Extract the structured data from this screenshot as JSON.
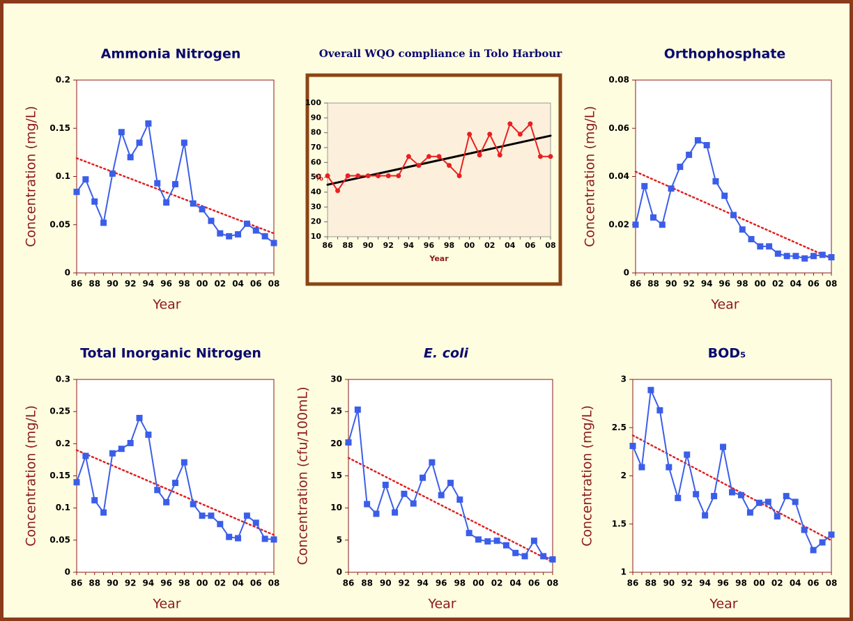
{
  "chart_data": [
    {
      "type": "line",
      "title": "Ammonia Nitrogen",
      "x_label": "Year",
      "y_label": "Concentration (mg/L)",
      "categories": [
        "86",
        null,
        "88",
        null,
        "90",
        null,
        "92",
        null,
        "94",
        null,
        "96",
        null,
        "98",
        null,
        "00",
        null,
        "02",
        null,
        "04",
        null,
        "06",
        null,
        "08"
      ],
      "series": [
        {
          "color": "#3b5ee8",
          "marker": "square",
          "values": [
            0.084,
            0.097,
            0.074,
            0.052,
            0.103,
            0.146,
            0.12,
            0.135,
            0.155,
            0.093,
            0.073,
            0.092,
            0.135,
            0.072,
            0.066,
            0.054,
            0.041,
            0.038,
            0.04,
            0.051,
            0.044,
            0.038,
            0.031
          ]
        }
      ],
      "trend_line": {
        "color": "#e02020",
        "style": "dotted",
        "start": 0.119,
        "end": 0.041
      },
      "ylim": [
        0,
        0.2
      ],
      "yticks": [
        0,
        0.05,
        0.1,
        0.15,
        0.2
      ],
      "plot_background": "#ffffff"
    },
    {
      "type": "line",
      "title": "Overall WQO compliance in Tolo Harbour",
      "x_label": "Year",
      "y_label": "%",
      "categories": [
        "86",
        null,
        "88",
        null,
        "90",
        null,
        "92",
        null,
        "94",
        null,
        "96",
        null,
        "98",
        null,
        "00",
        null,
        "02",
        null,
        "04",
        null,
        "06",
        null,
        "08"
      ],
      "series": [
        {
          "color": "#e82020",
          "marker": "circle",
          "values": [
            51,
            41,
            51,
            51,
            51,
            51,
            51,
            51,
            64,
            58,
            64,
            64,
            58,
            51,
            79,
            65,
            79,
            65,
            86,
            79,
            86,
            64,
            64
          ]
        }
      ],
      "trend_line": {
        "color": "#000000",
        "style": "solid",
        "start": 45,
        "end": 78
      },
      "ylim": [
        10,
        100
      ],
      "yticks": [
        10,
        20,
        30,
        40,
        50,
        60,
        70,
        80,
        90,
        100
      ],
      "plot_background": "#fcefdc"
    },
    {
      "type": "line",
      "title": "Orthophosphate",
      "x_label": "Year",
      "y_label": "Concentration (mg/L)",
      "categories": [
        "86",
        null,
        "88",
        null,
        "90",
        null,
        "92",
        null,
        "94",
        null,
        "96",
        null,
        "98",
        null,
        "00",
        null,
        "02",
        null,
        "04",
        null,
        "06",
        null,
        "08"
      ],
      "series": [
        {
          "color": "#3b5ee8",
          "marker": "square",
          "values": [
            0.02,
            0.036,
            0.023,
            0.02,
            0.035,
            0.044,
            0.049,
            0.055,
            0.053,
            0.038,
            0.032,
            0.024,
            0.018,
            0.014,
            0.011,
            0.011,
            0.008,
            0.007,
            0.007,
            0.006,
            0.007,
            0.0075,
            0.0065
          ]
        }
      ],
      "trend_line": {
        "color": "#e02020",
        "style": "dotted",
        "start": 0.042,
        "end": 0.006
      },
      "ylim": [
        0,
        0.08
      ],
      "yticks": [
        0,
        0.02,
        0.04,
        0.06,
        0.08
      ],
      "plot_background": "#ffffff"
    },
    {
      "type": "line",
      "title": "Total Inorganic Nitrogen",
      "x_label": "Year",
      "y_label": "Concentration (mg/L)",
      "categories": [
        "86",
        null,
        "88",
        null,
        "90",
        null,
        "92",
        null,
        "94",
        null,
        "96",
        null,
        "98",
        null,
        "00",
        null,
        "02",
        null,
        "04",
        null,
        "06",
        null,
        "08"
      ],
      "series": [
        {
          "color": "#3b5ee8",
          "marker": "square",
          "values": [
            0.14,
            0.181,
            0.112,
            0.093,
            0.185,
            0.192,
            0.201,
            0.24,
            0.214,
            0.128,
            0.109,
            0.139,
            0.171,
            0.106,
            0.088,
            0.088,
            0.075,
            0.055,
            0.053,
            0.088,
            0.077,
            0.052,
            0.051
          ]
        }
      ],
      "trend_line": {
        "color": "#e02020",
        "style": "dotted",
        "start": 0.19,
        "end": 0.058
      },
      "ylim": [
        0,
        0.3
      ],
      "yticks": [
        0,
        0.05,
        0.1,
        0.15,
        0.2,
        0.25,
        0.3
      ],
      "plot_background": "#ffffff"
    },
    {
      "type": "line",
      "title": "E. coli",
      "title_italic": true,
      "x_label": "Year",
      "y_label": "Concentration (cfu/100mL)",
      "categories": [
        "86",
        null,
        "88",
        null,
        "90",
        null,
        "92",
        null,
        "94",
        null,
        "96",
        null,
        "98",
        null,
        "00",
        null,
        "02",
        null,
        "04",
        null,
        "06",
        null,
        "08"
      ],
      "series": [
        {
          "color": "#3b5ee8",
          "marker": "square",
          "values": [
            20.2,
            25.3,
            10.6,
            9.1,
            13.6,
            9.3,
            12.2,
            10.7,
            14.7,
            17.1,
            12.0,
            13.9,
            11.3,
            6.1,
            5.1,
            4.8,
            4.9,
            4.2,
            3.0,
            2.5,
            4.9,
            2.5,
            2.0
          ]
        }
      ],
      "trend_line": {
        "color": "#e02020",
        "style": "dotted",
        "start": 17.8,
        "end": 1.6
      },
      "ylim": [
        0,
        30
      ],
      "yticks": [
        0,
        5,
        10,
        15,
        20,
        25,
        30
      ],
      "plot_background": "#ffffff"
    },
    {
      "type": "line",
      "title": "BOD₅",
      "x_label": "Year",
      "y_label": "Concentration (mg/L)",
      "categories": [
        "86",
        null,
        "88",
        null,
        "90",
        null,
        "92",
        null,
        "94",
        null,
        "96",
        null,
        "98",
        null,
        "00",
        null,
        "02",
        null,
        "04",
        null,
        "06",
        null,
        "08"
      ],
      "series": [
        {
          "color": "#3b5ee8",
          "marker": "square",
          "values": [
            2.31,
            2.09,
            2.89,
            2.68,
            2.09,
            1.77,
            2.22,
            1.81,
            1.59,
            1.79,
            2.3,
            1.83,
            1.8,
            1.62,
            1.72,
            1.73,
            1.58,
            1.79,
            1.73,
            1.44,
            1.23,
            1.31,
            1.39
          ]
        }
      ],
      "trend_line": {
        "color": "#e02020",
        "style": "dotted",
        "start": 2.42,
        "end": 1.33
      },
      "ylim": [
        1,
        3
      ],
      "yticks": [
        1,
        1.5,
        2,
        2.5,
        3
      ],
      "plot_background": "#ffffff"
    }
  ]
}
